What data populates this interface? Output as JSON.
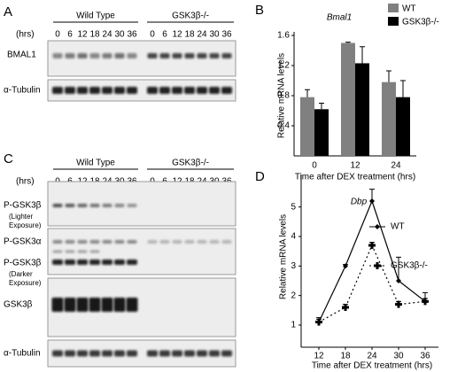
{
  "panel_a": {
    "label": "A",
    "hrs": "(hrs)",
    "groups": [
      "Wild Type",
      "GSK3β-/-"
    ],
    "timepoints": [
      "0",
      "6",
      "12",
      "18",
      "24",
      "30",
      "36"
    ],
    "rows": [
      "BMAL1",
      "α-Tubulin"
    ]
  },
  "panel_c": {
    "label": "C",
    "hrs": "(hrs)",
    "groups": [
      "Wild Type",
      "GSK3β-/-"
    ],
    "timepoints": [
      "0",
      "6",
      "12",
      "18",
      "24",
      "30",
      "36"
    ],
    "rows": [
      {
        "name": "P-GSK3β",
        "note": [
          "(Lighter",
          "Exposure)"
        ]
      },
      {
        "name": "P-GSK3α"
      },
      {
        "name": "P-GSK3β",
        "note": [
          "(Darker",
          "Exposure)"
        ]
      },
      {
        "name": "GSK3β"
      },
      {
        "name": "α-Tubulin"
      }
    ]
  },
  "chart_data": [
    {
      "type": "bar",
      "panel": "B",
      "title": "Bmal1",
      "y_label": "Relative mRNA levels",
      "x_label": "Time after DEX treatment (hrs)",
      "categories": [
        "0",
        "12",
        "24"
      ],
      "series": [
        {
          "name": "WT",
          "color": "#808080",
          "values": [
            0.78,
            1.5,
            0.98
          ],
          "errors": [
            0.1,
            0.01,
            0.15
          ]
        },
        {
          "name": "GSK3β-/-",
          "color": "#000000",
          "values": [
            0.62,
            1.23,
            0.78
          ],
          "errors": [
            0.08,
            0.22,
            0.22
          ]
        }
      ],
      "ylim": [
        0,
        1.6
      ],
      "yticks": [
        0.4,
        0.8,
        1.2,
        1.6
      ],
      "legend": "top-right"
    },
    {
      "type": "line",
      "panel": "D",
      "title": "Dbp",
      "y_label": "Relative mRNA levels",
      "x_label": "Time after DEX treatment (hrs)",
      "x": [
        12,
        18,
        24,
        30,
        36
      ],
      "series": [
        {
          "name": "WT",
          "color": "#000000",
          "values": [
            1.1,
            3.0,
            5.2,
            2.5,
            1.8
          ],
          "errors": [
            0.15,
            0.05,
            0.4,
            0.8,
            0.3
          ]
        },
        {
          "name": "GSK3β-/-",
          "color": "#000000",
          "values": [
            1.1,
            1.6,
            3.7,
            1.7,
            1.8
          ],
          "errors": [
            0.1,
            0.1,
            0.1,
            0.1,
            0.1
          ]
        }
      ],
      "xlim": [
        8,
        39
      ],
      "xticks": [
        12,
        18,
        24,
        30,
        36
      ],
      "ylim": [
        0.25,
        6.1
      ],
      "yticks": [
        1,
        2,
        3,
        4,
        5
      ],
      "legend": "right"
    }
  ]
}
